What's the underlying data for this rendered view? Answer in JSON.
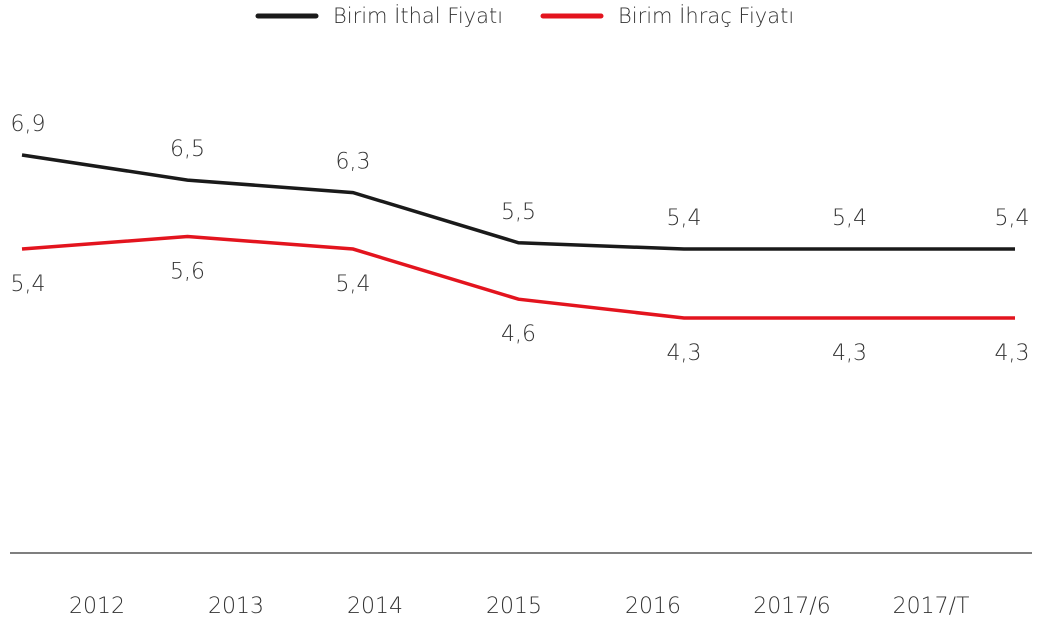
{
  "chart_data": {
    "type": "line",
    "categories": [
      "2012",
      "2013",
      "2014",
      "2015",
      "2016",
      "2017/6",
      "2017/T"
    ],
    "series": [
      {
        "name": "Birim İthal Fiyatı",
        "color": "#1a1a1a",
        "values": [
          6.9,
          6.5,
          6.3,
          5.5,
          5.4,
          5.4,
          5.4
        ],
        "value_labels": [
          "6,9",
          "6,5",
          "6,3",
          "5,5",
          "5,4",
          "5,4",
          "5,4"
        ]
      },
      {
        "name": "Birim İhraç Fiyatı",
        "color": "#e3141e",
        "values": [
          5.4,
          5.6,
          5.4,
          4.6,
          4.3,
          4.3,
          4.3
        ],
        "value_labels": [
          "5,4",
          "5,6",
          "5,4",
          "4,6",
          "4,3",
          "4,3",
          "4,3"
        ]
      }
    ]
  }
}
